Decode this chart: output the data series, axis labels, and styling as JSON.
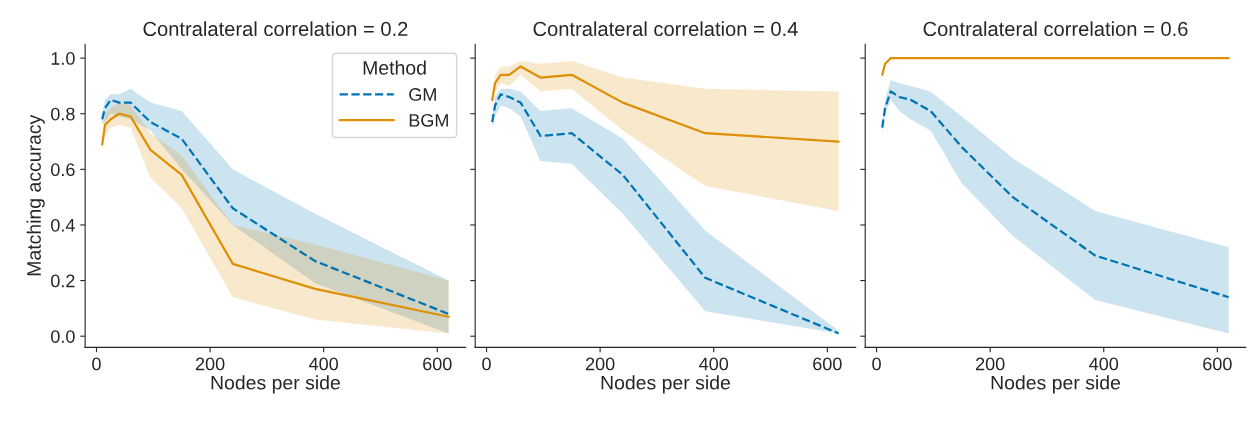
{
  "chart_data": [
    {
      "type": "line",
      "title": "Contralateral correlation = 0.2",
      "xlabel": "Nodes per side",
      "ylabel": "Matching accuracy",
      "legend_title": "Method",
      "legend": "top right",
      "grid": false,
      "x": [
        10,
        15,
        25,
        40,
        60,
        95,
        150,
        240,
        385,
        620
      ],
      "xlim": [
        -20,
        650
      ],
      "xticks": [
        0,
        200,
        400,
        600
      ],
      "ylim": [
        -0.04,
        1.05
      ],
      "yticks": [
        {
          "value": 0,
          "label": "0.0"
        },
        {
          "value": 0.2,
          "label": "0.2"
        },
        {
          "value": 0.4,
          "label": "0.4"
        },
        {
          "value": 0.6,
          "label": "0.6"
        },
        {
          "value": 0.8,
          "label": "0.8"
        },
        {
          "value": 1,
          "label": "1.0"
        }
      ],
      "series": [
        {
          "name": "GM",
          "color": "#0173b2",
          "line_style": "dashed",
          "values": [
            0.78,
            0.82,
            0.85,
            0.84,
            0.84,
            0.77,
            0.71,
            0.46,
            0.27,
            0.08
          ],
          "lower": [
            0.76,
            0.77,
            0.8,
            0.79,
            0.78,
            0.74,
            0.6,
            0.4,
            0.19,
            0.01
          ],
          "upper": [
            0.8,
            0.85,
            0.87,
            0.87,
            0.89,
            0.84,
            0.81,
            0.6,
            0.44,
            0.2
          ]
        },
        {
          "name": "BGM",
          "color": "#de8f05",
          "line_style": "solid",
          "values": [
            0.69,
            0.76,
            0.78,
            0.8,
            0.79,
            0.67,
            0.58,
            0.26,
            0.17,
            0.07
          ],
          "lower": [
            0.67,
            0.72,
            0.75,
            0.76,
            0.75,
            0.57,
            0.46,
            0.14,
            0.06,
            0.01
          ],
          "upper": [
            0.71,
            0.8,
            0.82,
            0.84,
            0.83,
            0.73,
            0.65,
            0.4,
            0.33,
            0.2
          ]
        }
      ]
    },
    {
      "type": "line",
      "title": "Contralateral correlation = 0.4",
      "xlabel": "Nodes per side",
      "tick_labels": "x",
      "grid": false,
      "x": [
        10,
        15,
        25,
        40,
        60,
        95,
        150,
        240,
        385,
        620
      ],
      "xlim": [
        -20,
        650
      ],
      "xticks": [
        0,
        200,
        400,
        600
      ],
      "ylim": [
        -0.04,
        1.05
      ],
      "yticks": [
        {
          "value": 0,
          "label": null
        },
        {
          "value": 0.2,
          "label": null
        },
        {
          "value": 0.4,
          "label": null
        },
        {
          "value": 0.6,
          "label": null
        },
        {
          "value": 0.8,
          "label": null
        },
        {
          "value": 1,
          "label": null
        }
      ],
      "series": [
        {
          "color": "#0173b2",
          "line_style": "dashed",
          "values": [
            0.77,
            0.83,
            0.87,
            0.86,
            0.84,
            0.72,
            0.73,
            0.58,
            0.21,
            0.01
          ],
          "lower": [
            0.75,
            0.79,
            0.83,
            0.82,
            0.79,
            0.63,
            0.62,
            0.44,
            0.09,
            0.01
          ],
          "upper": [
            0.79,
            0.86,
            0.89,
            0.89,
            0.88,
            0.81,
            0.82,
            0.71,
            0.38,
            0.02
          ]
        },
        {
          "color": "#de8f05",
          "line_style": "solid",
          "values": [
            0.85,
            0.91,
            0.94,
            0.94,
            0.97,
            0.93,
            0.94,
            0.84,
            0.73,
            0.7
          ],
          "lower": [
            0.82,
            0.88,
            0.91,
            0.9,
            0.94,
            0.88,
            0.89,
            0.74,
            0.54,
            0.45
          ],
          "upper": [
            0.87,
            0.94,
            0.97,
            0.97,
            0.99,
            0.98,
            0.99,
            0.93,
            0.89,
            0.88
          ]
        }
      ]
    },
    {
      "type": "line",
      "title": "Contralateral correlation = 0.6",
      "xlabel": "Nodes per side",
      "tick_labels": "x",
      "grid": false,
      "x": [
        10,
        15,
        25,
        40,
        60,
        95,
        150,
        240,
        385,
        620
      ],
      "xlim": [
        -20,
        650
      ],
      "xticks": [
        0,
        200,
        400,
        600
      ],
      "ylim": [
        -0.04,
        1.05
      ],
      "yticks": [
        {
          "value": 0,
          "label": null
        },
        {
          "value": 0.2,
          "label": null
        },
        {
          "value": 0.4,
          "label": null
        },
        {
          "value": 0.6,
          "label": null
        },
        {
          "value": 0.8,
          "label": null
        },
        {
          "value": 1,
          "label": null
        }
      ],
      "series": [
        {
          "color": "#0173b2",
          "line_style": "dashed",
          "values": [
            0.75,
            0.82,
            0.88,
            0.86,
            0.85,
            0.81,
            0.68,
            0.5,
            0.29,
            0.14
          ],
          "lower": [
            0.73,
            0.8,
            0.85,
            0.81,
            0.78,
            0.74,
            0.55,
            0.36,
            0.13,
            0.01
          ],
          "upper": [
            0.77,
            0.85,
            0.92,
            0.91,
            0.9,
            0.88,
            0.79,
            0.64,
            0.45,
            0.32
          ]
        },
        {
          "color": "#de8f05",
          "line_style": "solid",
          "values": [
            0.94,
            0.98,
            1.0,
            1.0,
            1.0,
            1.0,
            1.0,
            1.0,
            1.0,
            1.0
          ]
        }
      ]
    }
  ]
}
